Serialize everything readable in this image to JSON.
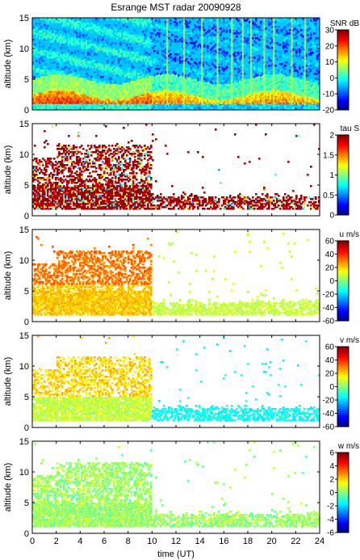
{
  "figure": {
    "title": "Esrange MST radar 20090928",
    "xlabel": "time (UT)"
  },
  "chart_data": [
    {
      "type": "heatmap",
      "variable": "snr",
      "ylabel": "altitude (km)",
      "xlim": [
        0,
        24
      ],
      "ylim": [
        0,
        15
      ],
      "xticks": [
        0,
        2,
        4,
        6,
        8,
        10,
        12,
        14,
        16,
        18,
        20,
        22,
        24
      ],
      "yticks": [
        0,
        5,
        10,
        15
      ],
      "colorbar": {
        "label": "SNR dB",
        "range": [
          -20,
          30
        ],
        "ticks": [
          -20,
          -10,
          0,
          10,
          20,
          30
        ]
      }
    },
    {
      "type": "heatmap",
      "variable": "tau",
      "ylabel": "altitude (km)",
      "xlim": [
        0,
        24
      ],
      "ylim": [
        0,
        15
      ],
      "xticks": [
        0,
        2,
        4,
        6,
        8,
        10,
        12,
        14,
        16,
        18,
        20,
        22,
        24
      ],
      "yticks": [
        0,
        5,
        10,
        15
      ],
      "colorbar": {
        "label": "tau S",
        "range": [
          0,
          2
        ],
        "ticks": [
          0,
          0.5,
          1,
          1.5,
          2
        ]
      }
    },
    {
      "type": "heatmap",
      "variable": "u",
      "ylabel": "altitude (km)",
      "xlim": [
        0,
        24
      ],
      "ylim": [
        0,
        15
      ],
      "xticks": [
        0,
        2,
        4,
        6,
        8,
        10,
        12,
        14,
        16,
        18,
        20,
        22,
        24
      ],
      "yticks": [
        0,
        5,
        10,
        15
      ],
      "colorbar": {
        "label": "u m/s",
        "range": [
          -60,
          60
        ],
        "ticks": [
          -60,
          -40,
          -20,
          0,
          20,
          40,
          60
        ]
      }
    },
    {
      "type": "heatmap",
      "variable": "v",
      "ylabel": "altitude (km)",
      "xlim": [
        0,
        24
      ],
      "ylim": [
        0,
        15
      ],
      "xticks": [
        0,
        2,
        4,
        6,
        8,
        10,
        12,
        14,
        16,
        18,
        20,
        22,
        24
      ],
      "yticks": [
        0,
        5,
        10,
        15
      ],
      "colorbar": {
        "label": "v m/s",
        "range": [
          -60,
          60
        ],
        "ticks": [
          -60,
          -40,
          -20,
          0,
          20,
          40,
          60
        ]
      }
    },
    {
      "type": "heatmap",
      "variable": "w",
      "ylabel": "altitude (km)",
      "xlim": [
        0,
        24
      ],
      "ylim": [
        0,
        15
      ],
      "xticks": [
        0,
        2,
        4,
        6,
        8,
        10,
        12,
        14,
        16,
        18,
        20,
        22,
        24
      ],
      "yticks": [
        0,
        5,
        10,
        15
      ],
      "colorbar": {
        "label": "w m/s",
        "range": [
          -6,
          6
        ],
        "ticks": [
          -6,
          -4,
          -2,
          0,
          2,
          4,
          6
        ]
      }
    }
  ]
}
